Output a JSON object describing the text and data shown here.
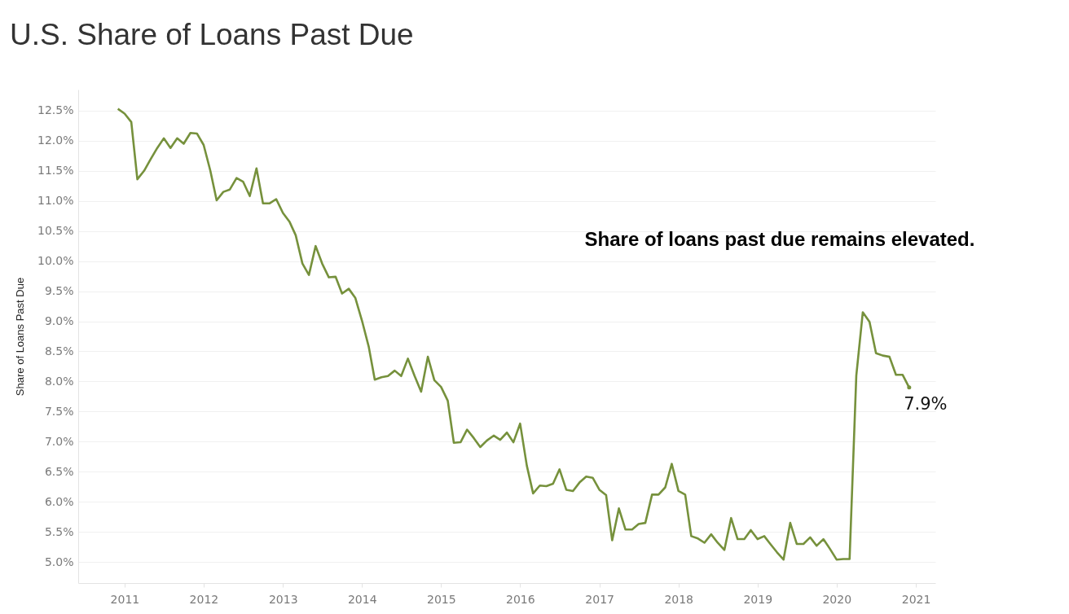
{
  "chart_data": {
    "type": "line",
    "title": "U.S. Share of Loans Past Due",
    "ylabel": "Share of Loans Past Due",
    "annotations": [
      "Share of loans past due remains elevated.",
      {
        "text": "7.9%",
        "x": "2020-12",
        "y": 7.9
      }
    ],
    "x": [
      "2010-12",
      "2011-01",
      "2011-02",
      "2011-03",
      "2011-04",
      "2011-05",
      "2011-06",
      "2011-07",
      "2011-08",
      "2011-09",
      "2011-10",
      "2011-11",
      "2011-12",
      "2012-01",
      "2012-02",
      "2012-03",
      "2012-04",
      "2012-05",
      "2012-06",
      "2012-07",
      "2012-08",
      "2012-09",
      "2012-10",
      "2012-11",
      "2012-12",
      "2013-01",
      "2013-02",
      "2013-03",
      "2013-04",
      "2013-05",
      "2013-06",
      "2013-07",
      "2013-08",
      "2013-09",
      "2013-10",
      "2013-11",
      "2013-12",
      "2014-01",
      "2014-02",
      "2014-03",
      "2014-04",
      "2014-05",
      "2014-06",
      "2014-07",
      "2014-08",
      "2014-09",
      "2014-10",
      "2014-11",
      "2014-12",
      "2015-01",
      "2015-02",
      "2015-03",
      "2015-04",
      "2015-05",
      "2015-06",
      "2015-07",
      "2015-08",
      "2015-09",
      "2015-10",
      "2015-11",
      "2015-12",
      "2016-01",
      "2016-02",
      "2016-03",
      "2016-04",
      "2016-05",
      "2016-06",
      "2016-07",
      "2016-08",
      "2016-09",
      "2016-10",
      "2016-11",
      "2016-12",
      "2017-01",
      "2017-02",
      "2017-03",
      "2017-04",
      "2017-05",
      "2017-06",
      "2017-07",
      "2017-08",
      "2017-09",
      "2017-10",
      "2017-11",
      "2017-12",
      "2018-01",
      "2018-02",
      "2018-03",
      "2018-04",
      "2018-05",
      "2018-06",
      "2018-07",
      "2018-08",
      "2018-09",
      "2018-10",
      "2018-11",
      "2018-12",
      "2019-01",
      "2019-02",
      "2019-03",
      "2019-04",
      "2019-05",
      "2019-06",
      "2019-07",
      "2019-08",
      "2019-09",
      "2019-10",
      "2019-11",
      "2019-12",
      "2020-01",
      "2020-02",
      "2020-03",
      "2020-04",
      "2020-05",
      "2020-06",
      "2020-07",
      "2020-08",
      "2020-09",
      "2020-10",
      "2020-11",
      "2020-12"
    ],
    "series": [
      {
        "color": "#76913c",
        "values": [
          12.53,
          12.45,
          12.31,
          11.36,
          11.5,
          11.69,
          11.88,
          12.04,
          11.88,
          12.04,
          11.95,
          12.13,
          12.12,
          11.93,
          11.5,
          11.01,
          11.15,
          11.19,
          11.38,
          11.32,
          11.08,
          11.54,
          10.96,
          10.96,
          11.03,
          10.8,
          10.65,
          10.43,
          9.96,
          9.77,
          10.25,
          9.96,
          9.73,
          9.74,
          9.46,
          9.54,
          9.39,
          9.01,
          8.58,
          8.03,
          8.07,
          8.09,
          8.18,
          8.09,
          8.38,
          8.09,
          7.83,
          8.41,
          8.02,
          7.91,
          7.68,
          6.98,
          6.99,
          7.2,
          7.06,
          6.91,
          7.02,
          7.1,
          7.03,
          7.15,
          6.99,
          7.3,
          6.6,
          6.14,
          6.27,
          6.26,
          6.3,
          6.54,
          6.2,
          6.18,
          6.32,
          6.42,
          6.4,
          6.2,
          6.11,
          5.36,
          5.89,
          5.54,
          5.54,
          5.63,
          5.65,
          6.12,
          6.12,
          6.24,
          6.63,
          6.18,
          6.12,
          5.43,
          5.39,
          5.32,
          5.46,
          5.32,
          5.2,
          5.73,
          5.38,
          5.38,
          5.53,
          5.38,
          5.43,
          5.3,
          5.16,
          5.04,
          5.65,
          5.3,
          5.3,
          5.41,
          5.27,
          5.38,
          5.22,
          5.04,
          5.05,
          5.05,
          8.1,
          9.15,
          8.99,
          8.47,
          8.43,
          8.41,
          8.11,
          8.11,
          7.9
        ]
      }
    ],
    "xlim": [
      "2010-06",
      "2021-04"
    ],
    "xticks": [
      "2011",
      "2012",
      "2013",
      "2014",
      "2015",
      "2016",
      "2017",
      "2018",
      "2019",
      "2020",
      "2021"
    ],
    "ylim": [
      4.65,
      12.85
    ],
    "yticks": [
      {
        "value": 5,
        "label": "5.0%"
      },
      {
        "value": 5.5,
        "label": "5.5%"
      },
      {
        "value": 6,
        "label": "6.0%"
      },
      {
        "value": 6.5,
        "label": "6.5%"
      },
      {
        "value": 7,
        "label": "7.0%"
      },
      {
        "value": 7.5,
        "label": "7.5%"
      },
      {
        "value": 8,
        "label": "8.0%"
      },
      {
        "value": 8.5,
        "label": "8.5%"
      },
      {
        "value": 9,
        "label": "9.0%"
      },
      {
        "value": 9.5,
        "label": "9.5%"
      },
      {
        "value": 10,
        "label": "10.0%"
      },
      {
        "value": 10.5,
        "label": "10.5%"
      },
      {
        "value": 11,
        "label": "11.0%"
      },
      {
        "value": 11.5,
        "label": "11.5%"
      },
      {
        "value": 12,
        "label": "12.0%"
      },
      {
        "value": 12.5,
        "label": "12.5%"
      }
    ],
    "grid": "y"
  }
}
